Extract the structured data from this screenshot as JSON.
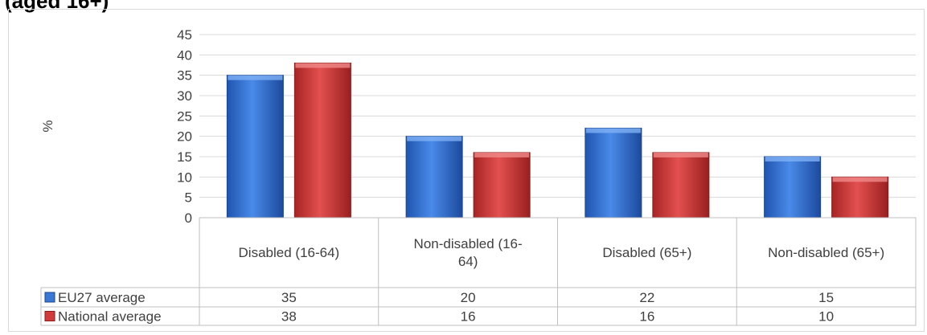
{
  "header": {
    "title_fragment": "(aged 16+)"
  },
  "chart_data": {
    "type": "bar",
    "title": "",
    "xlabel": "",
    "ylabel": "%",
    "ylim": [
      0,
      45
    ],
    "yticks": [
      "0",
      "5",
      "10",
      "15",
      "20",
      "25",
      "30",
      "35",
      "40",
      "45"
    ],
    "grid": true,
    "legend": "table-left",
    "categories": [
      "Disabled (16-64)",
      "Non-disabled (16-64)",
      "Disabled (65+)",
      "Non-disabled (65+)"
    ],
    "category_lines": [
      [
        "Disabled (16-64)"
      ],
      [
        "Non-disabled (16-",
        "64)"
      ],
      [
        "Disabled (65+)"
      ],
      [
        "Non-disabled (65+)"
      ]
    ],
    "series": [
      {
        "name": "EU27 average",
        "values": [
          35,
          20,
          22,
          15
        ],
        "labels": [
          "35",
          "20",
          "22",
          "15"
        ],
        "color": "#3a78d6"
      },
      {
        "name": "National average",
        "values": [
          38,
          16,
          16,
          10
        ],
        "labels": [
          "38",
          "16",
          "16",
          "10"
        ],
        "color": "#d23b3b"
      }
    ]
  }
}
